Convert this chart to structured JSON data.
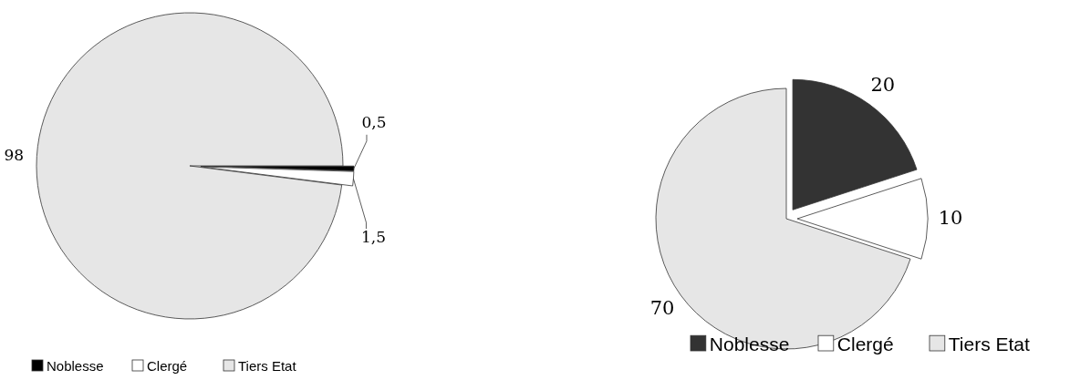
{
  "chart_data": [
    {
      "type": "pie",
      "categories": [
        "Noblesse",
        "Clergé",
        "Tiers Etat"
      ],
      "values": [
        0.5,
        1.5,
        98
      ],
      "value_labels": [
        "0,5",
        "1,5",
        "98"
      ],
      "colors": [
        "#000000",
        "#ffffff",
        "#e6e6e6"
      ],
      "legend": "bottom"
    },
    {
      "type": "pie",
      "categories": [
        "Noblesse",
        "Clergé",
        "Tiers Etat"
      ],
      "values": [
        20,
        10,
        70
      ],
      "data_labels": true,
      "colors": [
        "#333333",
        "#ffffff",
        "#e6e6e6"
      ],
      "legend": "bottom"
    }
  ]
}
